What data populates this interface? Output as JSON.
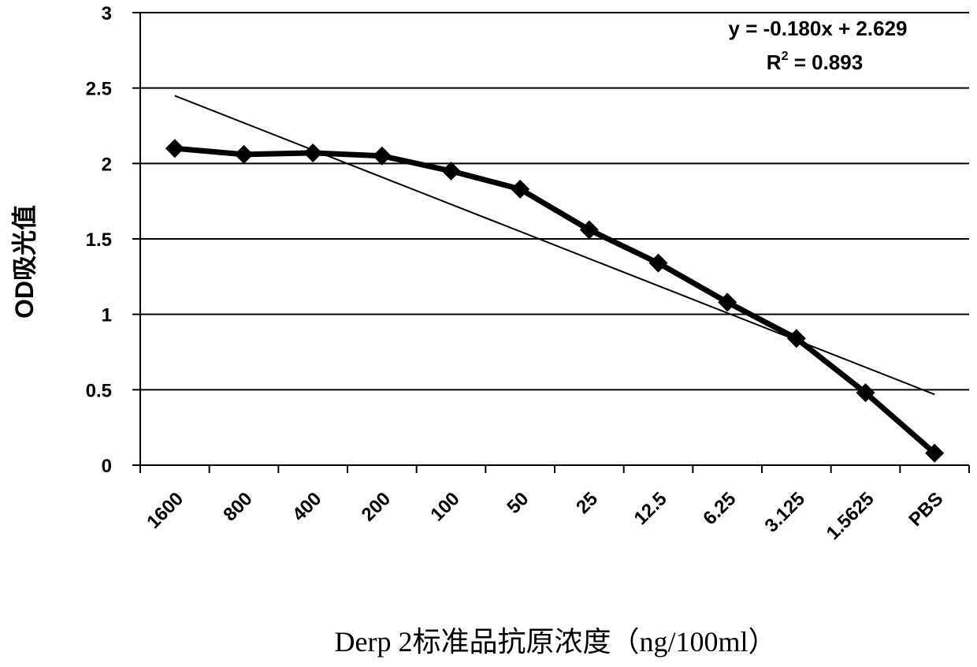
{
  "chart_data": {
    "type": "line",
    "categories": [
      "1600",
      "800",
      "400",
      "200",
      "100",
      "50",
      "25",
      "12.5",
      "6.25",
      "3.125",
      "1.5625",
      "PBS"
    ],
    "series": [
      {
        "values": [
          2.1,
          2.06,
          2.07,
          2.05,
          1.95,
          1.83,
          1.56,
          1.34,
          1.08,
          0.84,
          0.48,
          0.08
        ],
        "color": "#000000",
        "marker": "diamond"
      }
    ],
    "trendline": {
      "type": "linear",
      "slope": -0.18,
      "intercept": 2.629,
      "color": "#000000"
    },
    "annotations": {
      "equation": "y = -0.180x + 2.629",
      "r2_label": "R",
      "r2_sup": "2",
      "r2_value": " = 0.893"
    },
    "yticks": [
      "0",
      "0.5",
      "1",
      "1.5",
      "2",
      "2.5",
      "3"
    ],
    "ylim": [
      0,
      3
    ],
    "ylabel": "OD吸光值",
    "xlabel": "Derp 2标准品抗原浓度（ng/100ml）",
    "grid": "horizontal",
    "legend": "none"
  }
}
